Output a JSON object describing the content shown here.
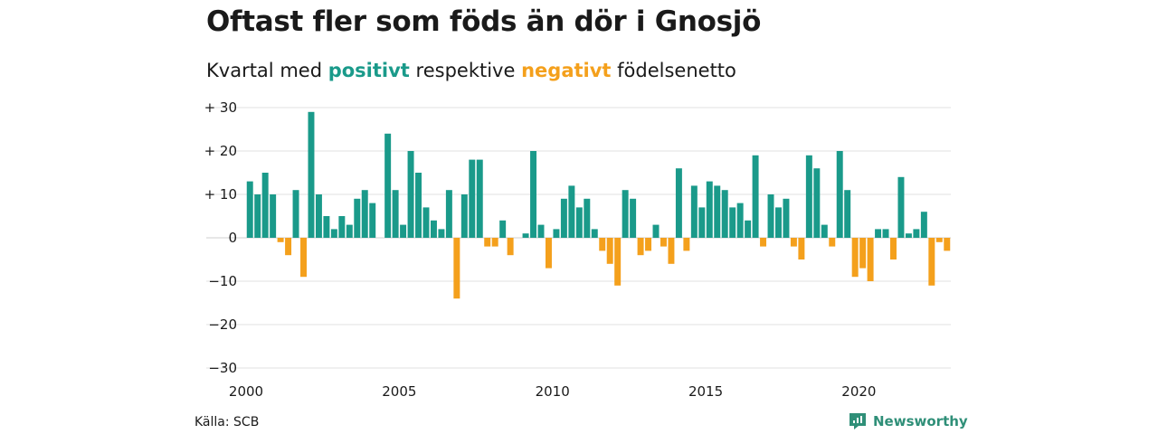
{
  "title": "Oftast fler som föds än dör i Gnosjö",
  "subtitle": {
    "prefix": "Kvartal med",
    "positive": "positivt",
    "middle": "respektive",
    "negative": "negativt",
    "suffix": "födelsenetto"
  },
  "source": "Källa: SCB",
  "brand": "Newsworthy",
  "colors": {
    "positive": "#1a9a8a",
    "negative": "#f4a01c",
    "brand": "#2f8f78"
  },
  "chart_data": {
    "type": "bar",
    "title": "Oftast fler som föds än dör i Gnosjö",
    "xlabel": "",
    "ylabel": "",
    "ylim": [
      -30,
      30
    ],
    "grid": true,
    "x_start": 2000,
    "x_ticks": [
      "2000",
      "2005",
      "2010",
      "2015",
      "2020"
    ],
    "y_ticks": [
      {
        "value": 30,
        "label": "+ 30"
      },
      {
        "value": 20,
        "label": "+ 20"
      },
      {
        "value": 10,
        "label": "+ 10"
      },
      {
        "value": 0,
        "label": "0"
      },
      {
        "value": -10,
        "label": "−10"
      },
      {
        "value": -20,
        "label": "−20"
      },
      {
        "value": -30,
        "label": "−30"
      }
    ],
    "values": [
      13,
      10,
      15,
      10,
      -1,
      -4,
      11,
      -9,
      29,
      10,
      5,
      2,
      5,
      3,
      9,
      11,
      8,
      0,
      24,
      11,
      3,
      20,
      15,
      7,
      4,
      2,
      11,
      -14,
      10,
      18,
      18,
      -2,
      -2,
      4,
      -4,
      0,
      1,
      20,
      3,
      -7,
      2,
      9,
      12,
      7,
      9,
      2,
      -3,
      -6,
      -11,
      11,
      9,
      -4,
      -3,
      3,
      -2,
      -6,
      16,
      -3,
      12,
      7,
      13,
      12,
      11,
      7,
      8,
      4,
      19,
      -2,
      10,
      7,
      9,
      -2,
      -5,
      19,
      16,
      3,
      -2,
      20,
      11,
      -9,
      -7,
      -10,
      2,
      2,
      -5,
      14,
      1,
      2,
      6,
      -11,
      -1,
      -3
    ]
  }
}
